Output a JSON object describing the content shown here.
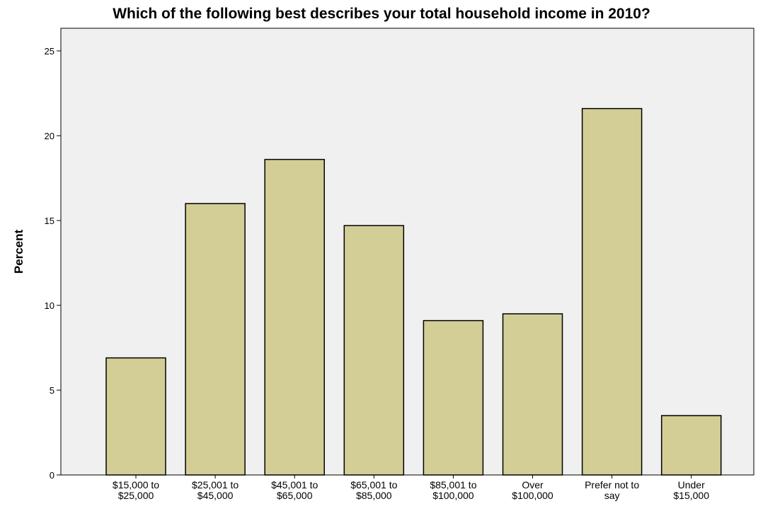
{
  "chart_data": {
    "type": "bar",
    "title": "Which of the following best describes your total household income in 2010?",
    "xlabel": "",
    "ylabel": "Percent",
    "ylim": [
      0,
      25
    ],
    "yticks": [
      0,
      5,
      10,
      15,
      20,
      25
    ],
    "grid": false,
    "legend": "none",
    "categories": [
      [
        "$15,000 to",
        "$25,000"
      ],
      [
        "$25,001 to",
        "$45,000"
      ],
      [
        "$45,001 to",
        "$65,000"
      ],
      [
        "$65,001 to",
        "$85,000"
      ],
      [
        "$85,001 to",
        "$100,000"
      ],
      [
        "Over",
        "$100,000"
      ],
      [
        "Prefer not to",
        "say"
      ],
      [
        "Under",
        "$15,000"
      ]
    ],
    "values": [
      6.9,
      16.0,
      18.6,
      14.7,
      9.1,
      9.5,
      21.6,
      3.5
    ],
    "colors": {
      "bar_fill": "#d3ce96",
      "bar_stroke": "#000000",
      "plot_background": "#f0f0f0",
      "axis": "#000000"
    }
  }
}
